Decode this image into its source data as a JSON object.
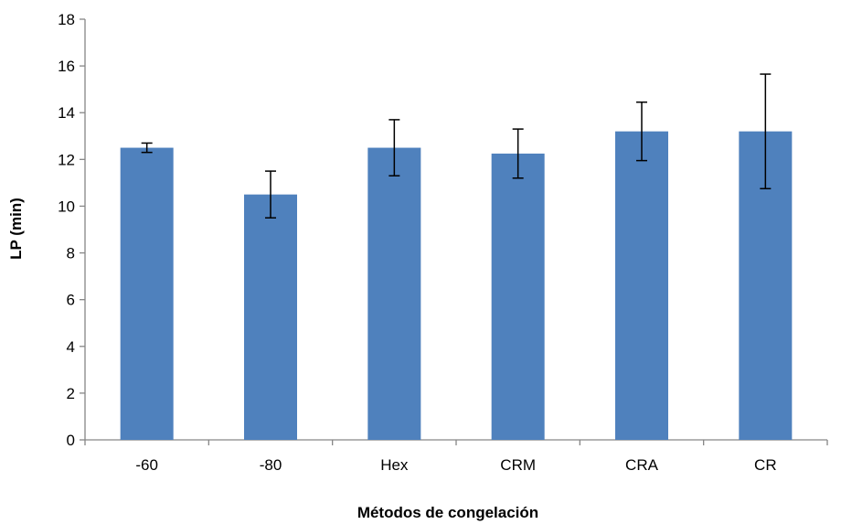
{
  "chart_data": {
    "type": "bar",
    "title": "",
    "xlabel": "Métodos de congelación",
    "ylabel": "LP (min)",
    "ylim": [
      0,
      18
    ],
    "ytick_step": 2,
    "yticks": [
      "0",
      "2",
      "4",
      "6",
      "8",
      "10",
      "12",
      "14",
      "16",
      "18"
    ],
    "categories": [
      "-60",
      "-80",
      "Hex",
      "CRM",
      "CRA",
      "CR"
    ],
    "values": [
      12.5,
      10.5,
      12.5,
      12.25,
      13.2,
      13.2
    ],
    "error": [
      0.2,
      1.0,
      1.2,
      1.05,
      1.25,
      2.45
    ],
    "grid": false,
    "legend": "none",
    "bar_color": "#4f81bd",
    "axis_color": "#868686"
  }
}
